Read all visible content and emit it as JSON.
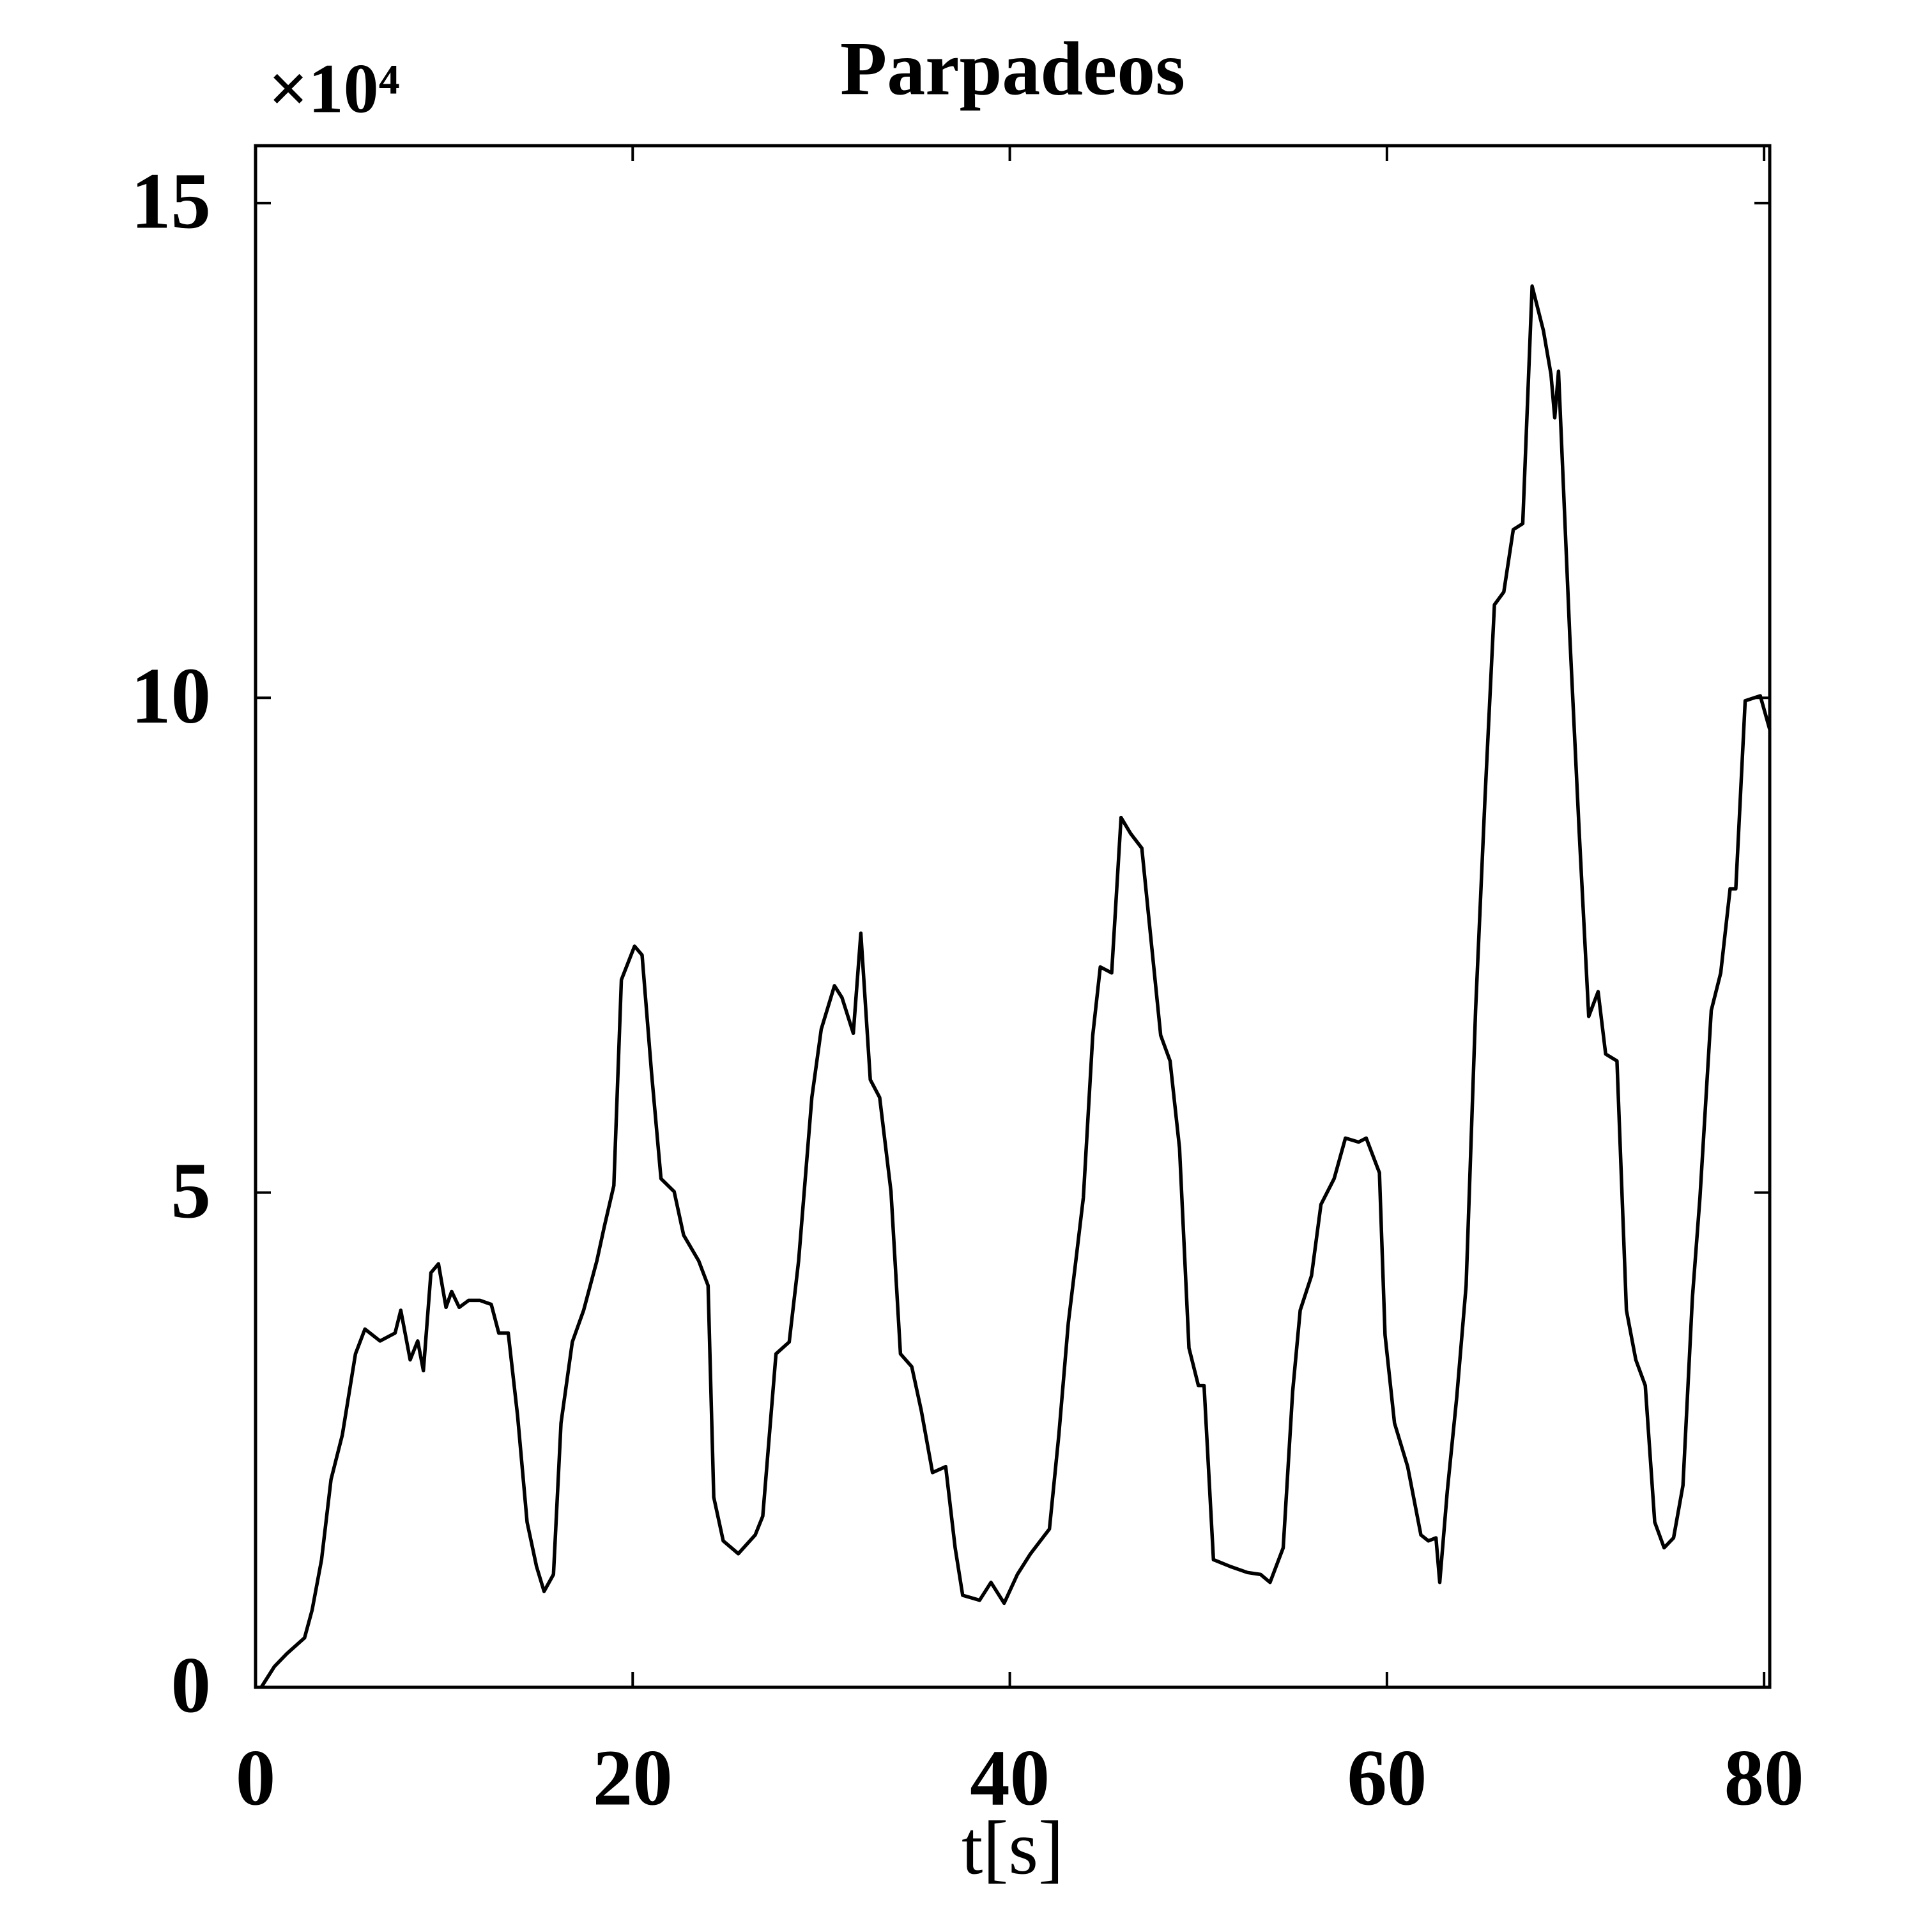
{
  "chart_data": {
    "type": "line",
    "title": "Parpadeos",
    "x_label": "t[s]",
    "y_offset_text": "×10⁴",
    "xlim": [
      0,
      80.3
    ],
    "xticks": [
      0,
      20,
      40,
      60,
      80
    ],
    "ylim": [
      0,
      15.58
    ],
    "yticks": [
      0,
      5,
      10,
      15
    ],
    "series": [
      {
        "color": "#000000",
        "x": [
          0.3,
          1.0,
          1.66,
          2.6,
          3.0,
          3.5,
          4.0,
          4.6,
          5.3,
          5.8,
          6.6,
          7.4,
          7.7,
          8.2,
          8.6,
          8.9,
          9.3,
          9.7,
          10.1,
          10.4,
          10.8,
          11.3,
          11.9,
          12.5,
          12.9,
          13.4,
          13.9,
          14.4,
          14.9,
          15.3,
          15.8,
          16.2,
          16.8,
          17.4,
          18.1,
          18.5,
          19.0,
          19.4,
          20.1,
          20.5,
          21.0,
          21.5,
          22.2,
          22.7,
          23.5,
          24.0,
          24.3,
          24.8,
          25.6,
          26.5,
          26.9,
          27.6,
          28.3,
          28.8,
          29.5,
          30.0,
          30.7,
          31.1,
          31.7,
          32.1,
          32.6,
          33.1,
          33.7,
          34.2,
          34.8,
          35.3,
          35.9,
          36.6,
          37.1,
          37.5,
          38.4,
          39.0,
          39.7,
          40.4,
          41.1,
          42.1,
          42.6,
          43.1,
          43.5,
          43.9,
          44.4,
          44.8,
          45.4,
          45.9,
          46.4,
          47.0,
          47.4,
          48.0,
          48.5,
          49.0,
          49.5,
          50.0,
          50.3,
          50.8,
          51.7,
          52.6,
          53.3,
          53.8,
          54.5,
          55.0,
          55.4,
          56.0,
          56.5,
          57.2,
          57.8,
          58.5,
          58.9,
          59.6,
          59.9,
          60.4,
          61.1,
          61.8,
          62.2,
          62.6,
          62.8,
          63.2,
          63.7,
          64.2,
          64.7,
          65.2,
          65.7,
          66.2,
          66.7,
          67.2,
          67.7,
          68.3,
          68.7,
          68.9,
          69.1,
          69.7,
          70.2,
          70.7,
          71.2,
          71.6,
          72.2,
          72.7,
          73.2,
          73.7,
          74.2,
          74.7,
          75.2,
          75.7,
          76.2,
          76.6,
          77.2,
          77.7,
          78.2,
          78.5,
          79.0,
          79.8,
          80.3
        ],
        "values": [
          0,
          0.21,
          0.34,
          0.5,
          0.78,
          1.29,
          2.1,
          2.55,
          3.37,
          3.62,
          3.5,
          3.58,
          3.81,
          3.31,
          3.5,
          3.2,
          4.19,
          4.28,
          3.84,
          4.0,
          3.84,
          3.91,
          3.91,
          3.87,
          3.58,
          3.58,
          2.74,
          1.67,
          1.22,
          0.97,
          1.14,
          2.67,
          3.49,
          3.81,
          4.31,
          4.66,
          5.07,
          7.15,
          7.49,
          7.4,
          6.21,
          5.14,
          5.01,
          4.57,
          4.31,
          4.06,
          1.92,
          1.48,
          1.35,
          1.54,
          1.73,
          3.37,
          3.49,
          4.31,
          5.96,
          6.65,
          7.09,
          6.97,
          6.61,
          7.62,
          6.14,
          5.96,
          5.01,
          3.37,
          3.24,
          2.8,
          2.17,
          2.23,
          1.41,
          0.93,
          0.88,
          1.06,
          0.85,
          1.14,
          1.35,
          1.6,
          2.55,
          3.68,
          4.31,
          4.95,
          6.59,
          7.28,
          7.22,
          8.79,
          8.63,
          8.48,
          7.72,
          6.59,
          6.33,
          5.45,
          3.43,
          3.05,
          3.05,
          1.29,
          1.22,
          1.16,
          1.14,
          1.06,
          1.41,
          2.99,
          3.81,
          4.16,
          4.88,
          5.14,
          5.55,
          5.51,
          5.55,
          5.2,
          3.56,
          2.67,
          2.23,
          1.54,
          1.48,
          1.51,
          1.06,
          1.98,
          2.93,
          4.06,
          6.84,
          8.98,
          10.94,
          11.07,
          11.7,
          11.76,
          14.16,
          13.71,
          13.27,
          12.83,
          13.3,
          10.62,
          8.63,
          6.78,
          7.03,
          6.4,
          6.33,
          3.81,
          3.31,
          3.05,
          1.67,
          1.41,
          1.51,
          2.04,
          3.94,
          4.95,
          6.84,
          7.22,
          8.07,
          8.07,
          9.97,
          10.02,
          9.68
        ]
      }
    ]
  }
}
